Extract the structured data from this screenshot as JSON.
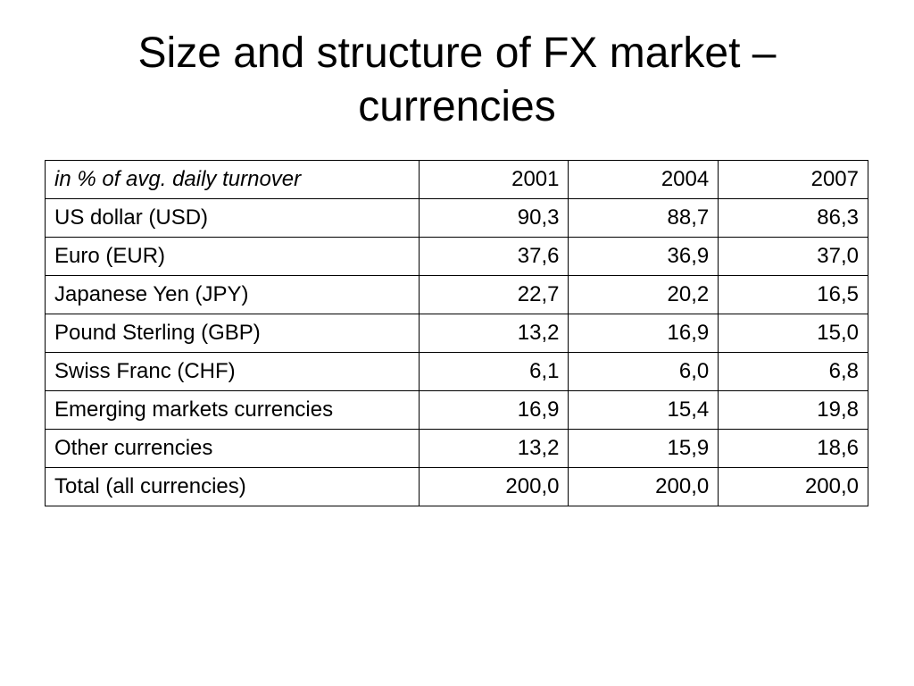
{
  "slide": {
    "title_line1": "Size and structure of FX market –",
    "title_line2": "currencies"
  },
  "table": {
    "header": {
      "label": "in % of avg. daily turnover",
      "years": [
        "2001",
        "2004",
        "2007"
      ]
    },
    "rows": [
      {
        "label": "US dollar (USD)",
        "values": [
          "90,3",
          "88,7",
          "86,3"
        ]
      },
      {
        "label": "Euro (EUR)",
        "values": [
          "37,6",
          "36,9",
          "37,0"
        ]
      },
      {
        "label": "Japanese Yen (JPY)",
        "values": [
          "22,7",
          "20,2",
          "16,5"
        ]
      },
      {
        "label": "Pound Sterling (GBP)",
        "values": [
          "13,2",
          "16,9",
          "15,0"
        ]
      },
      {
        "label": "Swiss Franc (CHF)",
        "values": [
          "6,1",
          "6,0",
          "6,8"
        ]
      },
      {
        "label": "Emerging markets currencies",
        "values": [
          "16,9",
          "15,4",
          "19,8"
        ]
      },
      {
        "label": "Other currencies",
        "values": [
          "13,2",
          "15,9",
          "18,6"
        ]
      },
      {
        "label": "Total (all currencies)",
        "values": [
          "200,0",
          "200,0",
          "200,0"
        ]
      }
    ]
  }
}
